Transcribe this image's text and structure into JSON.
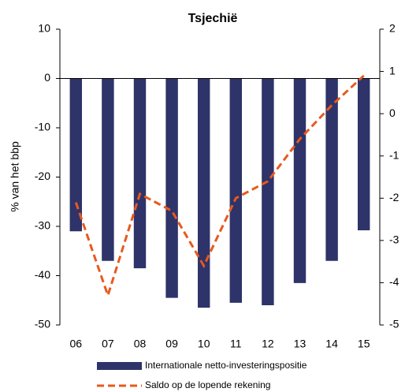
{
  "chart_data": {
    "type": "bar_line",
    "title": "Tsjechië",
    "y_label": "% van het bbp",
    "categories": [
      "06",
      "07",
      "08",
      "09",
      "10",
      "11",
      "12",
      "13",
      "14",
      "15"
    ],
    "series": [
      {
        "name": "Internationale netto-investeringspositie",
        "color": "#2e3369",
        "type": "bar",
        "values": [
          -31,
          -37,
          -38.5,
          -44.5,
          -46.5,
          -45.5,
          -46,
          -41.5,
          -37,
          -30.8
        ]
      },
      {
        "name": "Saldo op de lopende rekening",
        "color": "#e8591c",
        "type": "line",
        "axis": "y2",
        "dashed": true,
        "values": [
          -2.1,
          -4.3,
          -1.9,
          -2.3,
          -3.6,
          -2.0,
          -1.6,
          -0.6,
          0.2,
          0.9
        ]
      }
    ],
    "ylim": [
      -50,
      10
    ],
    "yticks": [
      -50,
      -40,
      -30,
      -20,
      -10,
      0,
      10
    ],
    "y2lim": [
      -5,
      2
    ],
    "y2ticks": [
      -5,
      -4,
      -3,
      -2,
      -1,
      0,
      1,
      2
    ]
  }
}
